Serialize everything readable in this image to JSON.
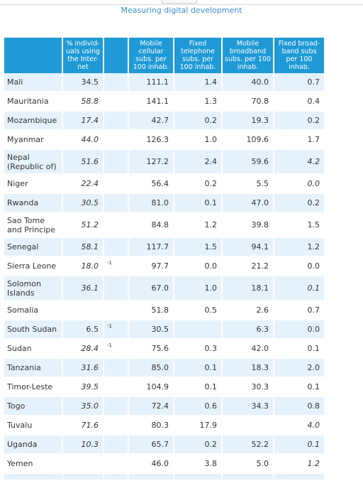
{
  "header_title": "Measuring digital development",
  "columns": [
    "",
    "% individ-uals using the Inter-net",
    "",
    "Mobile cellular subs. per 100 inhab.",
    "Fixed telephone subs. per 100 inhab.",
    "Mobile broadband subs. per 100 inhab.",
    "Fixed broad-band subs per 100 inhab."
  ],
  "rows": [
    {
      "country": "Mali",
      "internet": "34.5",
      "note": "",
      "mobile": "111.1",
      "fixed_tel": "1.4",
      "mobile_bb": "40.0",
      "fixed_bb": "0.7",
      "i_internet": false,
      "i_fixed_bb": false
    },
    {
      "country": "Mauritania",
      "internet": "58.8",
      "note": "",
      "mobile": "141.1",
      "fixed_tel": "1.3",
      "mobile_bb": "70.8",
      "fixed_bb": "0.4",
      "i_internet": true,
      "i_fixed_bb": false
    },
    {
      "country": "Mozambique",
      "internet": "17.4",
      "note": "",
      "mobile": "42.7",
      "fixed_tel": "0.2",
      "mobile_bb": "19.3",
      "fixed_bb": "0.2",
      "i_internet": true,
      "i_fixed_bb": false
    },
    {
      "country": "Myanmar",
      "internet": "44.0",
      "note": "",
      "mobile": "126.3",
      "fixed_tel": "1.0",
      "mobile_bb": "109.6",
      "fixed_bb": "1.7",
      "i_internet": true,
      "i_fixed_bb": false
    },
    {
      "country": "Nepal (Republic of)",
      "internet": "51.6",
      "note": "",
      "mobile": "127.2",
      "fixed_tel": "2.4",
      "mobile_bb": "59.6",
      "fixed_bb": "4.2",
      "i_internet": true,
      "i_fixed_bb": true,
      "tall": true
    },
    {
      "country": "Niger",
      "internet": "22.4",
      "note": "",
      "mobile": "56.4",
      "fixed_tel": "0.2",
      "mobile_bb": "5.5",
      "fixed_bb": "0.0",
      "i_internet": true,
      "i_fixed_bb": true
    },
    {
      "country": "Rwanda",
      "internet": "30.5",
      "note": "",
      "mobile": "81.0",
      "fixed_tel": "0.1",
      "mobile_bb": "47.0",
      "fixed_bb": "0.2",
      "i_internet": true,
      "i_fixed_bb": false
    },
    {
      "country": "Sao Tome and Principe",
      "internet": "51.2",
      "note": "",
      "mobile": "84.8",
      "fixed_tel": "1.2",
      "mobile_bb": "39.8",
      "fixed_bb": "1.5",
      "i_internet": true,
      "i_fixed_bb": false,
      "tall": true
    },
    {
      "country": "Senegal",
      "internet": "58.1",
      "note": "",
      "mobile": "117.7",
      "fixed_tel": "1.5",
      "mobile_bb": "94.1",
      "fixed_bb": "1.2",
      "i_internet": true,
      "i_fixed_bb": false
    },
    {
      "country": "Sierra Leone",
      "internet": "18.0",
      "note": "-1",
      "mobile": "97.7",
      "fixed_tel": "0.0",
      "mobile_bb": "21.2",
      "fixed_bb": "0.0",
      "i_internet": true,
      "i_fixed_bb": false
    },
    {
      "country": "Solomon Islands",
      "internet": "36.1",
      "note": "",
      "mobile": "67.0",
      "fixed_tel": "1.0",
      "mobile_bb": "18.1",
      "fixed_bb": "0.1",
      "i_internet": true,
      "i_fixed_bb": true,
      "tall": true
    },
    {
      "country": "Somalia",
      "internet": "",
      "note": "",
      "mobile": "51.8",
      "fixed_tel": "0.5",
      "mobile_bb": "2.6",
      "fixed_bb": "0.7",
      "i_internet": false,
      "i_fixed_bb": false
    },
    {
      "country": "South Sudan",
      "internet": "6.5",
      "note": "-1",
      "mobile": "30.5",
      "fixed_tel": "",
      "mobile_bb": "6.3",
      "fixed_bb": "0.0",
      "i_internet": false,
      "i_fixed_bb": false
    },
    {
      "country": "Sudan",
      "internet": "28.4",
      "note": "-1",
      "mobile": "75.6",
      "fixed_tel": "0.3",
      "mobile_bb": "42.0",
      "fixed_bb": "0.1",
      "i_internet": true,
      "i_fixed_bb": false
    },
    {
      "country": "Tanzania",
      "internet": "31.6",
      "note": "",
      "mobile": "85.0",
      "fixed_tel": "0.1",
      "mobile_bb": "18.3",
      "fixed_bb": "2.0",
      "i_internet": true,
      "i_fixed_bb": false
    },
    {
      "country": "Timor-Leste",
      "internet": "39.5",
      "note": "",
      "mobile": "104.9",
      "fixed_tel": "0.1",
      "mobile_bb": "30.3",
      "fixed_bb": "0.1",
      "i_internet": true,
      "i_fixed_bb": false
    },
    {
      "country": "Togo",
      "internet": "35.0",
      "note": "",
      "mobile": "72.4",
      "fixed_tel": "0.6",
      "mobile_bb": "34.3",
      "fixed_bb": "0.8",
      "i_internet": true,
      "i_fixed_bb": false
    },
    {
      "country": "Tuvalu",
      "internet": "71.6",
      "note": "",
      "mobile": "80.3",
      "fixed_tel": "17.9",
      "mobile_bb": "",
      "fixed_bb": "4.0",
      "i_internet": true,
      "i_fixed_bb": true
    },
    {
      "country": "Uganda",
      "internet": "10.3",
      "note": "",
      "mobile": "65.7",
      "fixed_tel": "0.2",
      "mobile_bb": "52.2",
      "fixed_bb": "0.1",
      "i_internet": true,
      "i_fixed_bb": true
    },
    {
      "country": "Yemen",
      "internet": "",
      "note": "",
      "mobile": "46.0",
      "fixed_tel": "3.8",
      "mobile_bb": "5.0",
      "fixed_bb": "1.2",
      "i_internet": false,
      "i_fixed_bb": true
    }
  ]
}
